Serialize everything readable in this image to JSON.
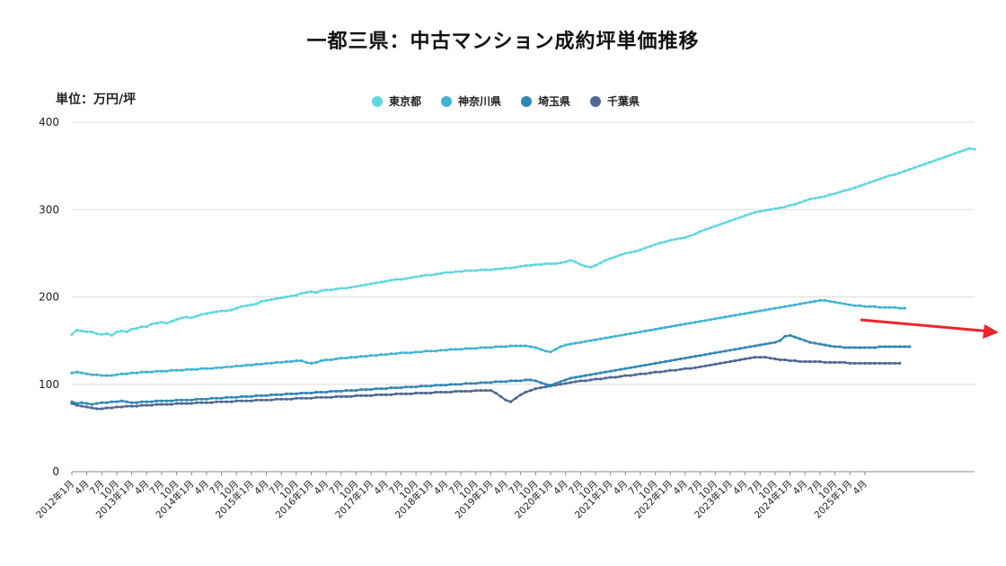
{
  "chart_data": {
    "type": "line",
    "title": "一都三県：中古マンション成約坪単価推移",
    "unit_label": "単位：万円/坪",
    "ylim": [
      0,
      400
    ],
    "y_ticks": [
      0,
      100,
      200,
      300,
      400
    ],
    "grid": true,
    "legend_position": "top-center",
    "x_tick_labels": [
      "2012年1月",
      "4月",
      "7月",
      "10月",
      "2013年1月",
      "4月",
      "7月",
      "10月",
      "2014年1月",
      "4月",
      "7月",
      "10月",
      "2015年1月",
      "4月",
      "7月",
      "10月",
      "2016年1月",
      "4月",
      "7月",
      "10月",
      "2017年1月",
      "4月",
      "7月",
      "10月",
      "2018年1月",
      "4月",
      "7月",
      "10月",
      "2019年1月",
      "4月",
      "7月",
      "10月",
      "2020年1月",
      "4月",
      "7月",
      "10月",
      "2021年1月",
      "4月",
      "7月",
      "10月",
      "2022年1月",
      "4月",
      "7月",
      "10月",
      "2023年1月",
      "4月",
      "7月",
      "10月",
      "2024年1月",
      "4月",
      "7月",
      "10月",
      "2025年1月",
      "4月"
    ],
    "series": [
      {
        "name": "東京都",
        "color": "#5fd7df",
        "values": [
          157,
          162,
          161,
          160,
          160,
          158,
          157,
          158,
          156,
          160,
          161,
          160,
          163,
          164,
          166,
          166,
          169,
          170,
          171,
          170,
          172,
          174,
          176,
          177,
          176,
          178,
          180,
          181,
          182,
          183,
          184,
          184,
          185,
          187,
          189,
          190,
          191,
          192,
          195,
          196,
          197,
          198,
          199,
          200,
          201,
          202,
          204,
          205,
          206,
          205,
          207,
          208,
          208,
          209,
          210,
          210,
          211,
          212,
          213,
          214,
          215,
          216,
          217,
          218,
          219,
          220,
          220,
          221,
          222,
          223,
          224,
          225,
          225,
          226,
          227,
          228,
          228,
          229,
          229,
          230,
          230,
          230,
          231,
          231,
          231,
          232,
          232,
          233,
          233,
          234,
          235,
          236,
          236,
          237,
          237,
          238,
          238,
          238,
          239,
          240,
          242,
          240,
          237,
          235,
          234,
          236,
          239,
          242,
          244,
          246,
          248,
          250,
          251,
          252,
          254,
          256,
          258,
          260,
          262,
          263,
          265,
          266,
          267,
          268,
          270,
          272,
          275,
          277,
          279,
          281,
          283,
          285,
          287,
          289,
          291,
          293,
          295,
          297,
          298,
          299,
          300,
          301,
          302,
          303,
          305,
          306,
          308,
          310,
          312,
          313,
          314,
          315,
          317,
          318,
          320,
          322,
          323,
          325,
          327,
          329,
          331,
          333,
          335,
          337,
          339,
          340,
          342,
          344,
          346,
          348,
          350,
          352,
          354,
          356,
          358,
          360,
          362,
          364,
          366,
          368,
          370,
          369
        ]
      },
      {
        "name": "神奈川県",
        "color": "#3fb3d3",
        "values": [
          113,
          114,
          113,
          112,
          111,
          111,
          110,
          110,
          110,
          111,
          112,
          112,
          113,
          113,
          114,
          114,
          114,
          115,
          115,
          115,
          116,
          116,
          116,
          117,
          117,
          117,
          118,
          118,
          118,
          119,
          119,
          120,
          120,
          121,
          121,
          122,
          122,
          123,
          123,
          124,
          124,
          125,
          125,
          126,
          126,
          127,
          127,
          125,
          124,
          125,
          127,
          128,
          128,
          129,
          130,
          130,
          131,
          131,
          132,
          132,
          133,
          133,
          134,
          134,
          135,
          135,
          136,
          136,
          136,
          137,
          137,
          138,
          138,
          138,
          139,
          139,
          140,
          140,
          140,
          141,
          141,
          141,
          142,
          142,
          142,
          143,
          143,
          143,
          144,
          144,
          144,
          144,
          143,
          142,
          140,
          138,
          137,
          140,
          143,
          145,
          146,
          147,
          148,
          149,
          150,
          151,
          152,
          153,
          154,
          155,
          156,
          157,
          158,
          159,
          160,
          161,
          162,
          163,
          164,
          165,
          166,
          167,
          168,
          169,
          170,
          171,
          172,
          173,
          174,
          175,
          176,
          177,
          178,
          179,
          180,
          181,
          182,
          183,
          184,
          185,
          186,
          187,
          188,
          189,
          190,
          191,
          192,
          193,
          194,
          195,
          196,
          196,
          195,
          194,
          193,
          192,
          191,
          190,
          190,
          189,
          189,
          189,
          188,
          188,
          188,
          188,
          187,
          187
        ]
      },
      {
        "name": "埼玉県",
        "color": "#2f86b6",
        "values": [
          80,
          78,
          79,
          78,
          77,
          78,
          79,
          79,
          80,
          80,
          81,
          80,
          79,
          79,
          80,
          80,
          80,
          81,
          81,
          81,
          81,
          82,
          82,
          82,
          82,
          83,
          83,
          83,
          84,
          84,
          84,
          85,
          85,
          85,
          86,
          86,
          86,
          87,
          87,
          87,
          88,
          88,
          88,
          89,
          89,
          89,
          90,
          90,
          90,
          91,
          91,
          91,
          92,
          92,
          92,
          93,
          93,
          93,
          94,
          94,
          94,
          95,
          95,
          95,
          96,
          96,
          96,
          97,
          97,
          97,
          98,
          98,
          98,
          99,
          99,
          99,
          100,
          100,
          100,
          101,
          101,
          101,
          102,
          102,
          102,
          103,
          103,
          103,
          104,
          104,
          104,
          105,
          105,
          104,
          102,
          100,
          99,
          101,
          103,
          105,
          107,
          108,
          109,
          110,
          111,
          112,
          113,
          114,
          115,
          116,
          117,
          118,
          119,
          120,
          121,
          122,
          123,
          124,
          125,
          126,
          127,
          128,
          129,
          130,
          131,
          132,
          133,
          134,
          135,
          136,
          137,
          138,
          139,
          140,
          141,
          142,
          143,
          144,
          145,
          146,
          147,
          148,
          150,
          155,
          156,
          154,
          152,
          150,
          148,
          147,
          146,
          145,
          144,
          143,
          143,
          142,
          142,
          142,
          142,
          142,
          142,
          142,
          143,
          143,
          143,
          143,
          143,
          143,
          143
        ]
      },
      {
        "name": "千葉県",
        "color": "#4f6894",
        "values": [
          78,
          76,
          75,
          74,
          73,
          72,
          72,
          73,
          73,
          74,
          74,
          75,
          75,
          75,
          76,
          76,
          76,
          77,
          77,
          77,
          77,
          78,
          78,
          78,
          78,
          79,
          79,
          79,
          79,
          80,
          80,
          80,
          80,
          81,
          81,
          81,
          81,
          82,
          82,
          82,
          82,
          83,
          83,
          83,
          83,
          84,
          84,
          84,
          84,
          85,
          85,
          85,
          85,
          86,
          86,
          86,
          86,
          87,
          87,
          87,
          87,
          88,
          88,
          88,
          88,
          89,
          89,
          89,
          89,
          90,
          90,
          90,
          90,
          91,
          91,
          91,
          91,
          92,
          92,
          92,
          92,
          93,
          93,
          93,
          93,
          90,
          86,
          82,
          80,
          84,
          88,
          91,
          93,
          95,
          96,
          97,
          98,
          99,
          100,
          101,
          102,
          103,
          104,
          104,
          105,
          106,
          106,
          107,
          108,
          108,
          109,
          110,
          110,
          111,
          112,
          112,
          113,
          114,
          114,
          115,
          116,
          116,
          117,
          118,
          118,
          119,
          120,
          121,
          122,
          123,
          124,
          125,
          126,
          127,
          128,
          129,
          130,
          131,
          131,
          131,
          130,
          129,
          128,
          128,
          127,
          127,
          126,
          126,
          126,
          126,
          126,
          125,
          125,
          125,
          125,
          125,
          124,
          124,
          124,
          124,
          124,
          124,
          124,
          124,
          124,
          124,
          124
        ]
      }
    ]
  }
}
